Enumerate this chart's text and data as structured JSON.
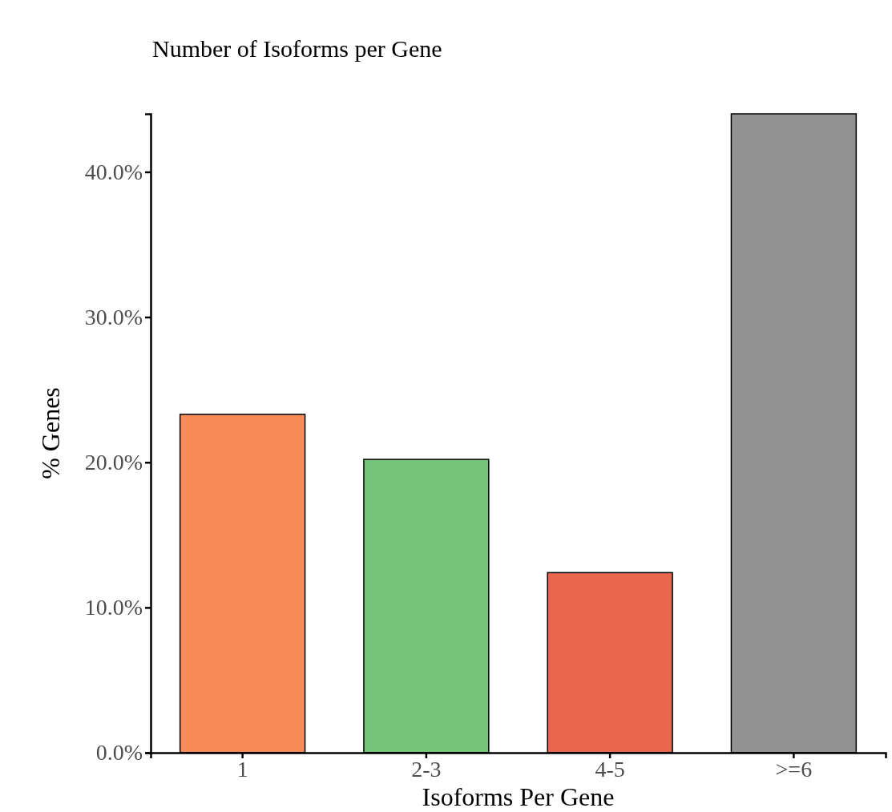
{
  "chart_data": {
    "type": "bar",
    "title": "Number of Isoforms per Gene",
    "xlabel": "Isoforms Per Gene",
    "ylabel": "% Genes",
    "categories": [
      "1",
      "2-3",
      "4-5",
      ">=6"
    ],
    "values": [
      23.3,
      20.2,
      12.4,
      44.0
    ],
    "colors": [
      "#f78b5a",
      "#76c477",
      "#e8684e",
      "#929292"
    ],
    "ylim": [
      0,
      44
    ],
    "yticks": [
      {
        "value": 0,
        "label": "0.0%"
      },
      {
        "value": 10,
        "label": "10.0%"
      },
      {
        "value": 20,
        "label": "20.0%"
      },
      {
        "value": 30,
        "label": "30.0%"
      },
      {
        "value": 40,
        "label": "40.0%"
      }
    ],
    "grid": false
  }
}
